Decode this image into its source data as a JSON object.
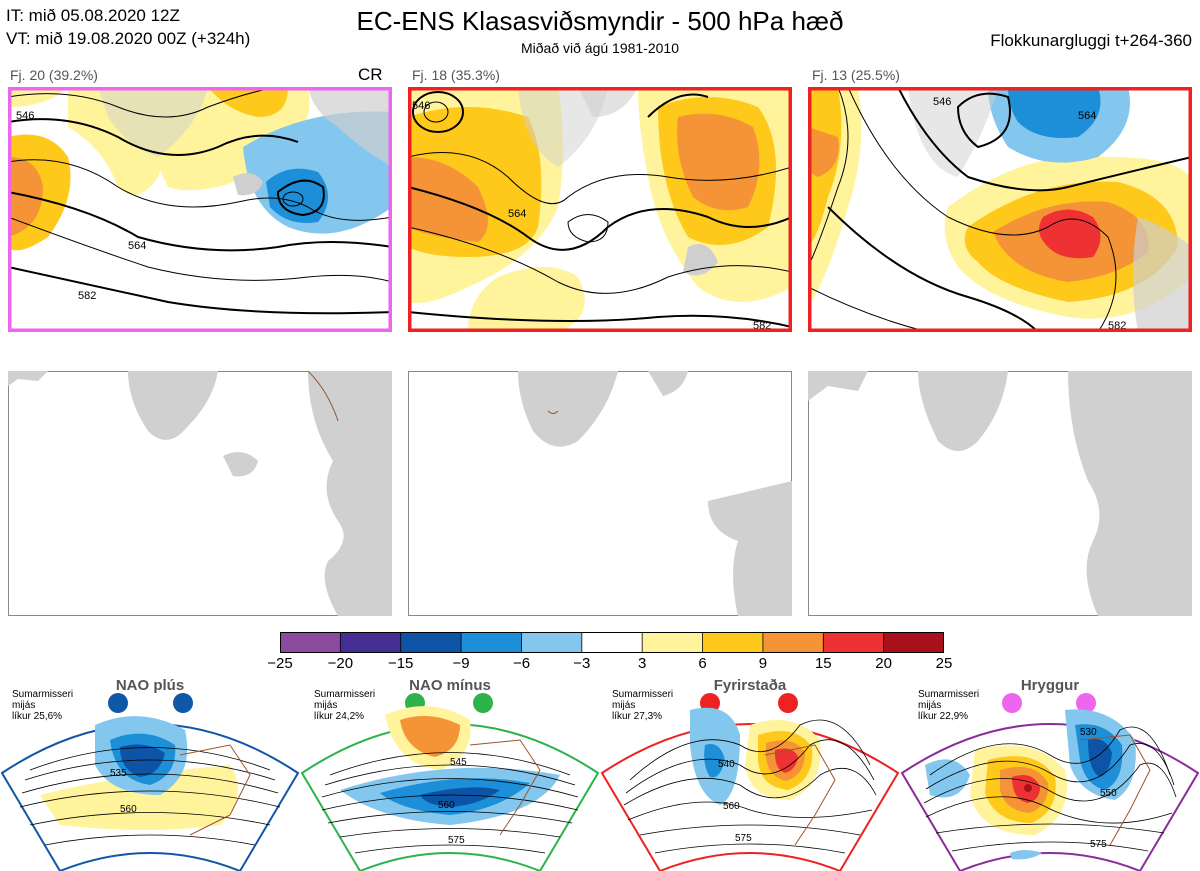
{
  "header": {
    "init_time": "IT: mið 05.08.2020 12Z",
    "valid_time": "VT: mið 19.08.2020 00Z  (+324h)",
    "title": "EC-ENS Klasasviðsmyndir - 500 hPa hæð",
    "subtitle": "Miðað við ágú 1981-2010",
    "window": "Flokkunargluggi t+264-360"
  },
  "clusters": [
    {
      "label": "Fj. 20 (39.2%)",
      "regime_tag": "CR",
      "frame_color": "#ee66ee",
      "contour_labels": [
        "546",
        "564",
        "582"
      ]
    },
    {
      "label": "Fj. 18 (35.3%)",
      "regime_tag": "",
      "frame_color": "#ee2222",
      "contour_labels": [
        "546",
        "564",
        "582"
      ]
    },
    {
      "label": "Fj. 13 (25.5%)",
      "regime_tag": "",
      "frame_color": "#ee2222",
      "contour_labels": [
        "546",
        "564",
        "582"
      ]
    }
  ],
  "colorbar": {
    "ticks": [
      "−25",
      "−20",
      "−15",
      "−9",
      "−6",
      "−3",
      "3",
      "6",
      "9",
      "15",
      "20",
      "25"
    ],
    "colors": [
      "#8a4a9e",
      "#452e93",
      "#0d54a6",
      "#1c8fd8",
      "#83c6ee",
      "#ffffff",
      "#fff39c",
      "#fec91b",
      "#f59436",
      "#ee3233",
      "#a8111c"
    ]
  },
  "regimes": [
    {
      "name": "NAO plús",
      "caption": [
        "Sumarmisseri",
        "mijás",
        "líkur 25,6%"
      ],
      "dot_color": "#1157a8",
      "frame_color": "#1157a8",
      "contours": [
        "535",
        "560"
      ]
    },
    {
      "name": "NAO mínus",
      "caption": [
        "Sumarmisseri",
        "mijás",
        "líkur 24,2%"
      ],
      "dot_color": "#2db34a",
      "frame_color": "#2db34a",
      "contours": [
        "545",
        "560",
        "575"
      ]
    },
    {
      "name": "Fyrirstaða",
      "caption": [
        "Sumarmisseri",
        "mijás",
        "líkur 27,3%"
      ],
      "dot_color": "#ee2222",
      "frame_color": "#ee2222",
      "contours": [
        "540",
        "560",
        "575"
      ]
    },
    {
      "name": "Hryggur",
      "caption": [
        "Sumarmisseri",
        "mijás",
        "líkur 22,9%"
      ],
      "dot_color": "#ee66ee",
      "frame_color": "#8a2c99",
      "contours": [
        "530",
        "550",
        "575"
      ]
    }
  ]
}
